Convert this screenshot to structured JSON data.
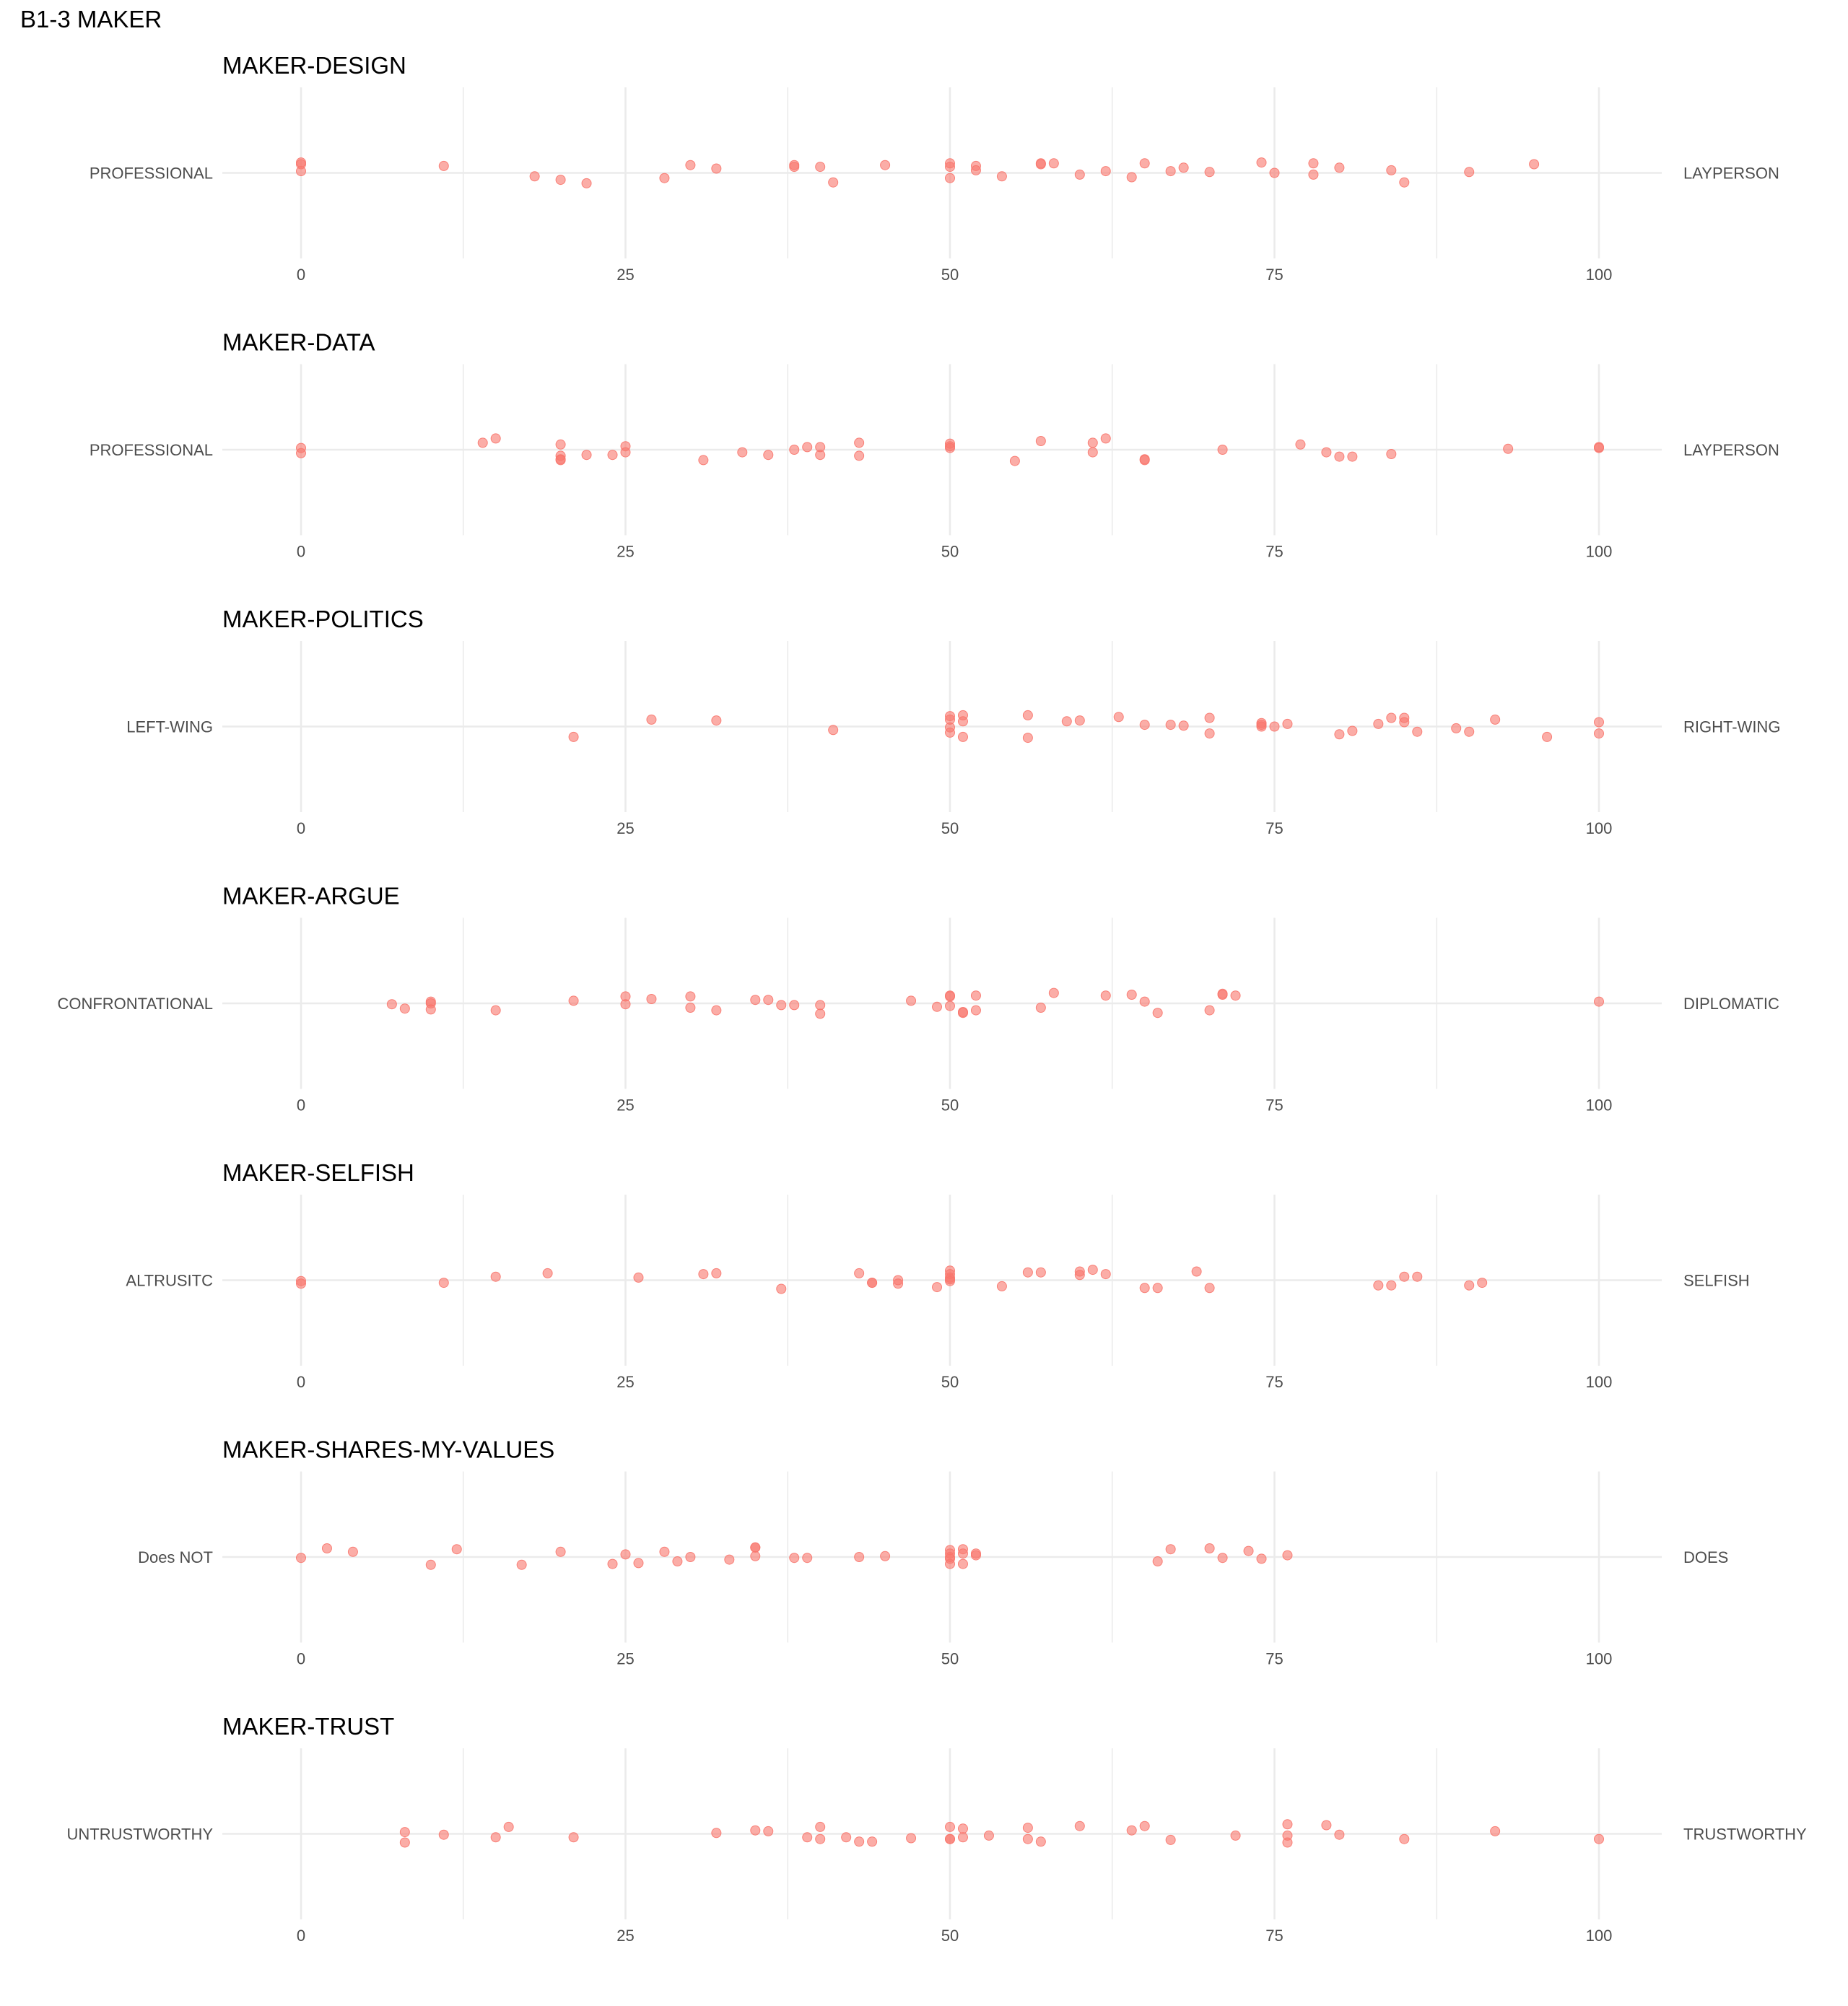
{
  "title": "B1-3 MAKER",
  "colors": {
    "point": "#F8766D",
    "grid": "#EBEBEB",
    "text": "#000000",
    "axis_text": "#4D4D4D"
  },
  "chart_data": [
    {
      "type": "scatter",
      "title": "MAKER-DESIGN",
      "left_label": "PROFESSIONAL",
      "right_label": "LAYPERSON",
      "xlim": [
        0,
        100
      ],
      "xticks": [
        "0",
        "25",
        "50",
        "75",
        "100"
      ],
      "x": [
        0,
        0,
        0,
        11,
        18,
        20,
        22,
        28,
        30,
        32,
        38,
        38,
        40,
        41,
        45,
        50,
        50,
        50,
        52,
        52,
        54,
        57,
        57,
        58,
        60,
        62,
        64,
        65,
        67,
        68,
        70,
        74,
        75,
        78,
        78,
        80,
        84,
        85,
        90,
        95
      ],
      "y": [
        0.1,
        0.12,
        0.02,
        0.08,
        -0.04,
        -0.08,
        -0.12,
        -0.06,
        0.09,
        0.05,
        0.07,
        0.09,
        0.07,
        -0.11,
        0.09,
        0.11,
        0.07,
        -0.06,
        0.08,
        0.03,
        -0.04,
        0.11,
        0.1,
        0.11,
        -0.02,
        0.02,
        -0.05,
        0.11,
        0.02,
        0.06,
        0.01,
        0.12,
        0.0,
        0.11,
        -0.02,
        0.06,
        0.03,
        -0.11,
        0.01,
        0.1
      ]
    },
    {
      "type": "scatter",
      "title": "MAKER-DATA",
      "left_label": "PROFESSIONAL",
      "right_label": "LAYPERSON",
      "xlim": [
        0,
        100
      ],
      "xticks": [
        "0",
        "25",
        "50",
        "75",
        "100"
      ],
      "x": [
        0,
        0,
        14,
        15,
        20,
        20,
        20,
        20,
        22,
        24,
        25,
        25,
        31,
        34,
        36,
        38,
        39,
        40,
        40,
        43,
        43,
        50,
        50,
        50,
        55,
        57,
        61,
        61,
        62,
        65,
        65,
        71,
        77,
        79,
        80,
        81,
        84,
        93,
        100,
        100
      ],
      "y": [
        -0.04,
        0.02,
        0.08,
        0.13,
        0.06,
        -0.07,
        -0.12,
        -0.11,
        -0.06,
        -0.06,
        0.04,
        -0.03,
        -0.12,
        -0.03,
        -0.06,
        0.0,
        0.03,
        -0.06,
        0.03,
        0.08,
        -0.07,
        0.07,
        0.02,
        0.04,
        -0.13,
        0.1,
        0.08,
        -0.03,
        0.13,
        -0.12,
        -0.11,
        0.0,
        0.06,
        -0.03,
        -0.08,
        -0.08,
        -0.05,
        0.01,
        0.03,
        0.02
      ]
    },
    {
      "type": "scatter",
      "title": "MAKER-POLITICS",
      "left_label": "LEFT-WING",
      "right_label": "RIGHT-WING",
      "xlim": [
        0,
        100
      ],
      "xticks": [
        "0",
        "25",
        "50",
        "75",
        "100"
      ],
      "x": [
        21,
        27,
        32,
        41,
        50,
        50,
        50,
        50,
        51,
        51,
        51,
        56,
        56,
        59,
        60,
        63,
        65,
        67,
        68,
        70,
        70,
        74,
        74,
        74,
        75,
        76,
        80,
        81,
        83,
        84,
        85,
        85,
        86,
        89,
        90,
        92,
        96,
        100,
        100
      ],
      "y": [
        -0.12,
        0.08,
        0.07,
        -0.04,
        0.12,
        0.08,
        -0.01,
        -0.07,
        0.06,
        0.13,
        -0.12,
        0.13,
        -0.13,
        0.06,
        0.07,
        0.11,
        0.02,
        0.02,
        0.01,
        0.1,
        -0.08,
        0.02,
        0.0,
        0.04,
        0.0,
        0.03,
        -0.09,
        -0.05,
        0.03,
        0.1,
        0.05,
        0.1,
        -0.06,
        -0.02,
        -0.06,
        0.08,
        -0.12,
        0.05,
        -0.08
      ]
    },
    {
      "type": "scatter",
      "title": "MAKER-ARGUE",
      "left_label": "CONFRONTATIONAL",
      "right_label": "DIPLOMATIC",
      "xlim": [
        0,
        100
      ],
      "xticks": [
        "0",
        "25",
        "50",
        "75",
        "100"
      ],
      "x": [
        7,
        8,
        10,
        10,
        10,
        15,
        21,
        25,
        25,
        27,
        30,
        30,
        32,
        35,
        36,
        37,
        38,
        40,
        40,
        47,
        49,
        50,
        50,
        50,
        51,
        51,
        52,
        52,
        57,
        58,
        62,
        64,
        65,
        66,
        70,
        71,
        71,
        72,
        100
      ],
      "y": [
        -0.01,
        -0.06,
        0.0,
        0.02,
        -0.07,
        -0.08,
        0.03,
        0.08,
        -0.01,
        0.05,
        0.08,
        -0.05,
        -0.08,
        0.04,
        0.04,
        -0.02,
        -0.02,
        -0.02,
        -0.12,
        0.03,
        -0.04,
        0.09,
        -0.03,
        0.08,
        -0.11,
        -0.1,
        0.09,
        -0.08,
        -0.05,
        0.12,
        0.09,
        0.1,
        0.02,
        -0.11,
        -0.08,
        0.1,
        0.11,
        0.09,
        0.02
      ]
    },
    {
      "type": "scatter",
      "title": "MAKER-SELFISH",
      "left_label": "ALTRUSITC",
      "right_label": "SELFISH",
      "xlim": [
        0,
        100
      ],
      "xticks": [
        "0",
        "25",
        "50",
        "75",
        "100"
      ],
      "x": [
        0,
        0,
        11,
        15,
        19,
        26,
        31,
        32,
        37,
        43,
        44,
        44,
        46,
        46,
        49,
        50,
        50,
        50,
        50,
        50,
        54,
        56,
        57,
        60,
        60,
        61,
        62,
        65,
        66,
        69,
        70,
        83,
        84,
        85,
        86,
        90,
        91
      ],
      "y": [
        -0.01,
        -0.04,
        -0.03,
        0.04,
        0.08,
        0.03,
        0.07,
        0.08,
        -0.1,
        0.08,
        -0.03,
        -0.03,
        -0.04,
        0.0,
        -0.08,
        0.07,
        0.03,
        0.01,
        -0.01,
        0.11,
        -0.07,
        0.09,
        0.09,
        0.1,
        0.06,
        0.12,
        0.07,
        -0.09,
        -0.09,
        0.1,
        -0.09,
        -0.06,
        -0.06,
        0.04,
        0.04,
        -0.06,
        -0.03
      ]
    },
    {
      "type": "scatter",
      "title": "MAKER-SHARES-MY-VALUES",
      "left_label": "Does NOT",
      "right_label": "DOES",
      "xlim": [
        0,
        100
      ],
      "xticks": [
        "0",
        "25",
        "50",
        "75",
        "100"
      ],
      "x": [
        0,
        2,
        4,
        10,
        12,
        17,
        20,
        24,
        25,
        26,
        28,
        29,
        30,
        33,
        35,
        35,
        35,
        38,
        39,
        43,
        45,
        50,
        50,
        50,
        50,
        50,
        51,
        51,
        51,
        52,
        52,
        66,
        67,
        70,
        71,
        73,
        74,
        76
      ],
      "y": [
        -0.01,
        0.1,
        0.06,
        -0.09,
        0.09,
        -0.09,
        0.06,
        -0.08,
        0.03,
        -0.07,
        0.06,
        -0.05,
        0.0,
        -0.03,
        0.11,
        0.11,
        0.01,
        -0.01,
        -0.01,
        0.0,
        0.01,
        0.04,
        -0.02,
        0.08,
        -0.08,
        0.0,
        0.09,
        0.04,
        -0.08,
        0.02,
        0.04,
        -0.05,
        0.09,
        0.1,
        -0.01,
        0.07,
        -0.02,
        0.02
      ]
    },
    {
      "type": "scatter",
      "title": "MAKER-TRUST",
      "left_label": "UNTRUSTWORTHY",
      "right_label": "TRUSTWORTHY",
      "xlim": [
        0,
        100
      ],
      "xticks": [
        "0",
        "25",
        "50",
        "75",
        "100"
      ],
      "x": [
        8,
        8,
        11,
        15,
        16,
        21,
        32,
        35,
        36,
        39,
        40,
        40,
        42,
        43,
        44,
        47,
        50,
        50,
        50,
        51,
        51,
        53,
        56,
        56,
        57,
        60,
        64,
        65,
        67,
        72,
        76,
        76,
        76,
        79,
        80,
        85,
        92,
        100
      ],
      "y": [
        -0.1,
        0.02,
        -0.01,
        -0.04,
        0.08,
        -0.04,
        0.01,
        0.04,
        0.03,
        -0.04,
        -0.06,
        0.08,
        -0.04,
        -0.09,
        -0.09,
        -0.05,
        0.08,
        -0.06,
        -0.06,
        -0.04,
        0.06,
        -0.02,
        0.07,
        -0.06,
        -0.09,
        0.09,
        0.04,
        0.09,
        -0.07,
        -0.02,
        0.11,
        -0.02,
        -0.1,
        0.1,
        -0.01,
        -0.06,
        0.03,
        -0.06
      ]
    }
  ]
}
